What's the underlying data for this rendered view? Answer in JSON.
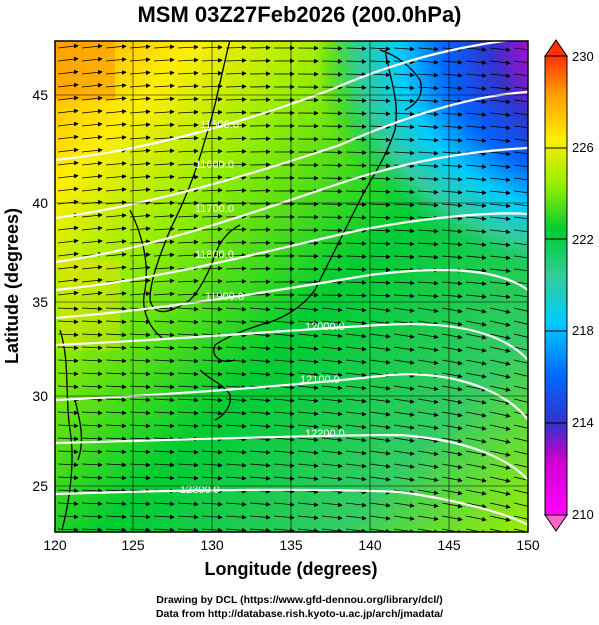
{
  "title": "MSM 03Z27Feb2026 (200.0hPa)",
  "x_axis": {
    "label": "Longitude (degrees)",
    "ticks": [
      "120",
      "125",
      "130",
      "135",
      "140",
      "145",
      "150"
    ],
    "range": [
      120,
      150
    ]
  },
  "y_axis": {
    "label": "Latitude (degrees)",
    "ticks": [
      "25",
      "30",
      "35",
      "40",
      "45"
    ],
    "range": [
      22.5,
      47.9
    ]
  },
  "colorbar": {
    "ticks": [
      "230",
      "226",
      "222",
      "218",
      "214",
      "210"
    ],
    "range": [
      210,
      230
    ],
    "colors": [
      "#ff00ff",
      "#cc00cc",
      "#3333cc",
      "#0066ff",
      "#00ccff",
      "#33cc99",
      "#00cc33",
      "#99ee00",
      "#ffee00",
      "#ff9900",
      "#ff3300"
    ]
  },
  "contours": [
    {
      "label": "11500.0"
    },
    {
      "label": "11600.0"
    },
    {
      "label": "11700.0"
    },
    {
      "label": "11800.0"
    },
    {
      "label": "11900.0"
    },
    {
      "label": "12000.0"
    },
    {
      "label": "12100.0"
    },
    {
      "label": "12200.0"
    },
    {
      "label": "12300.0"
    }
  ],
  "credits": {
    "line1": "Drawing by DCL (https://www.gfd-dennou.org/library/dcl/)",
    "line2": "Data from http://database.rish.kyoto-u.ac.jp/arch/jmadata/"
  },
  "colors": {
    "contour": "#ffffff",
    "vector": "#000000",
    "coast": "#000000"
  }
}
